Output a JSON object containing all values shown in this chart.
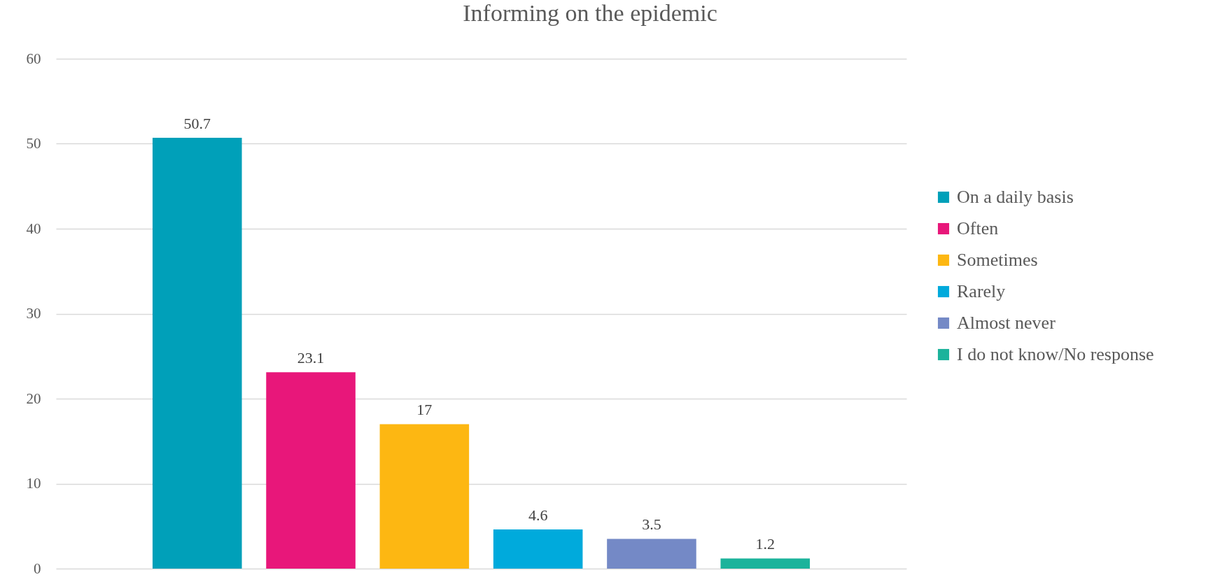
{
  "chart_data": {
    "type": "bar",
    "title": "Informing on the epidemic",
    "categories": [
      null
    ],
    "series": [
      {
        "name": "On a daily basis",
        "color": "#00a0b9",
        "values": [
          50.7
        ]
      },
      {
        "name": "Often",
        "color": "#e8177a",
        "values": [
          23.1
        ]
      },
      {
        "name": "Sometimes",
        "color": "#fdb712",
        "values": [
          17
        ]
      },
      {
        "name": "Rarely",
        "color": "#00aadc",
        "values": [
          4.6
        ]
      },
      {
        "name": "Almost never",
        "color": "#7489c6",
        "values": [
          3.5
        ]
      },
      {
        "name": "I do not know/No response",
        "color": "#1cb39b",
        "values": [
          1.2
        ]
      }
    ],
    "ylim": [
      0,
      60
    ],
    "yticks": [
      0,
      10,
      20,
      30,
      40,
      50,
      60
    ],
    "grid": "y",
    "legend": "right",
    "data_labels": true,
    "tick_labels": "y"
  }
}
